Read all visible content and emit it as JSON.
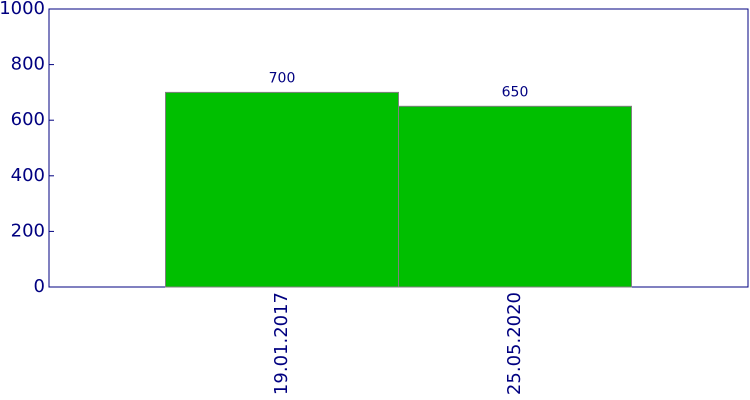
{
  "chart_data": {
    "type": "bar",
    "categories": [
      "19.01.2017",
      "25.05.2020"
    ],
    "values": [
      700,
      650
    ],
    "color": "#00bf00",
    "ylim": [
      0,
      1000
    ],
    "yticks": [
      0,
      200,
      400,
      600,
      800,
      1000
    ]
  }
}
